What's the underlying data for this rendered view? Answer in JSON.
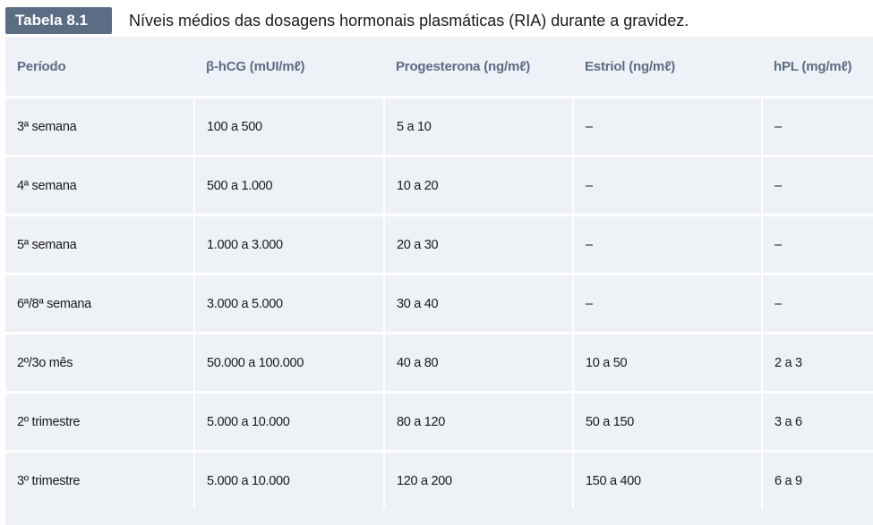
{
  "header": {
    "badge": "Tabela 8.1",
    "title": "Níveis médios das dosagens hormonais plasmáticas (RIA) durante a gravidez."
  },
  "table": {
    "columns": [
      "Período",
      "β-hCG (mUI/mℓ)",
      "Progesterona (ng/mℓ)",
      "Estriol (ng/mℓ)",
      "hPL (mg/mℓ)"
    ],
    "rows": [
      [
        "3ª semana",
        "100 a 500",
        "5 a 10",
        "–",
        "–"
      ],
      [
        "4ª semana",
        "500 a 1.000",
        "10 a 20",
        "–",
        "–"
      ],
      [
        "5ª semana",
        "1.000 a 3.000",
        "20 a 30",
        "–",
        "–"
      ],
      [
        "6ª/8ª semana",
        "3.000 a 5.000",
        "30 a 40",
        "–",
        "–"
      ],
      [
        "2º/3o mês",
        "50.000 a 100.000",
        "40 a 80",
        "10 a 50",
        "2 a 3"
      ],
      [
        "2º trimestre",
        "5.000 a 10.000",
        "80 a 120",
        "50 a 150",
        "3 a 6"
      ],
      [
        "3º trimestre",
        "5.000 a 10.000",
        "120 a 200",
        "150 a 400",
        "6 a 9"
      ]
    ]
  },
  "colors": {
    "accent": "#5b6d85",
    "table_background": "#eef1f6"
  }
}
